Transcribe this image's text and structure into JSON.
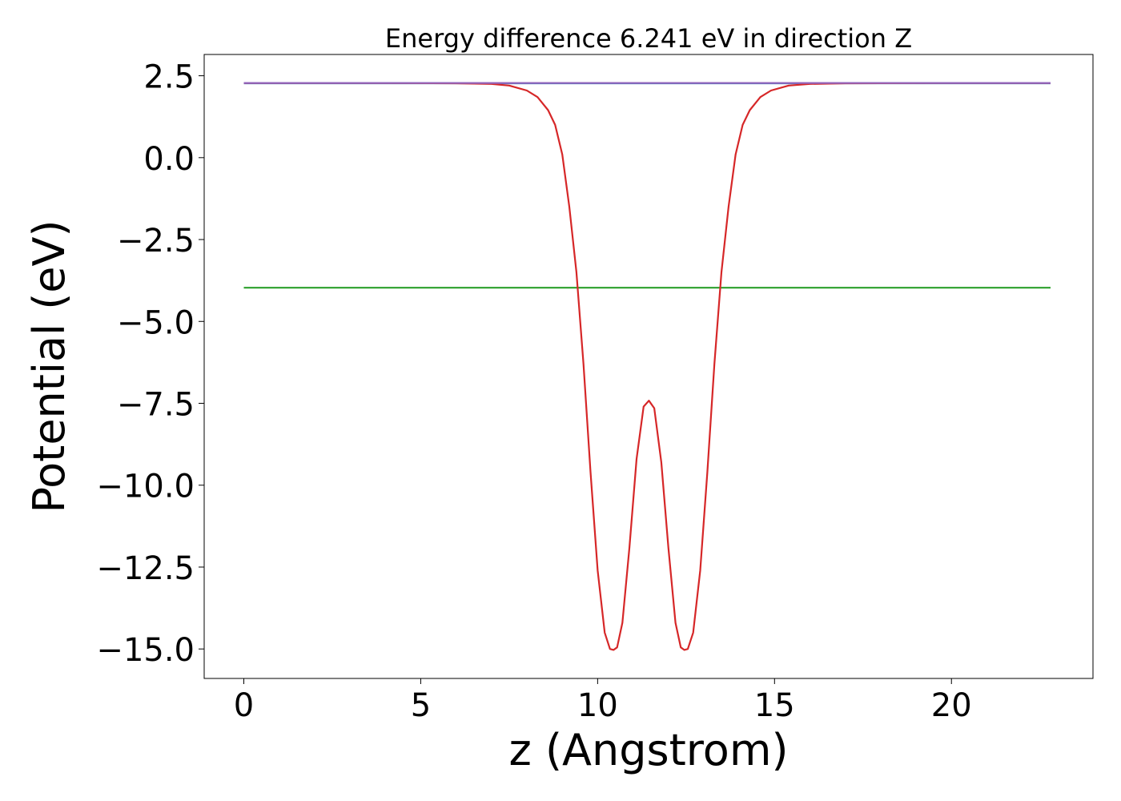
{
  "chart_data": {
    "type": "line",
    "title": "Energy difference 6.241 eV in direction Z",
    "xlabel": "z (Angstrom)",
    "ylabel": "Potential (eV)",
    "xlim": [
      -1.12,
      24.0
    ],
    "ylim": [
      -15.9,
      3.15
    ],
    "xticks": [
      0,
      5,
      10,
      15,
      20
    ],
    "xtick_labels": [
      "0",
      "5",
      "10",
      "15",
      "20"
    ],
    "yticks": [
      2.5,
      0.0,
      -2.5,
      -5.0,
      -7.5,
      -10.0,
      -12.5,
      -15.0
    ],
    "ytick_labels": [
      "2.5",
      "0.0",
      "−2.5",
      "−5.0",
      "−7.5",
      "−10.0",
      "−12.5",
      "−15.0"
    ],
    "grid": false,
    "series": [
      {
        "color": "#1f77b4",
        "x": [
          0,
          22.8
        ],
        "y": [
          2.27,
          2.27
        ]
      },
      {
        "color": "#2ca02c",
        "x": [
          0,
          22.8
        ],
        "y": [
          -3.97,
          -3.97
        ]
      },
      {
        "color": "#d62728",
        "x": [
          0,
          3,
          6,
          7.0,
          7.5,
          8.0,
          8.3,
          8.6,
          8.8,
          9.0,
          9.2,
          9.4,
          9.6,
          9.8,
          10.0,
          10.2,
          10.35,
          10.45,
          10.55,
          10.7,
          10.9,
          11.1,
          11.3,
          11.45,
          11.6,
          11.8,
          12.0,
          12.2,
          12.35,
          12.45,
          12.55,
          12.7,
          12.9,
          13.1,
          13.3,
          13.5,
          13.7,
          13.9,
          14.1,
          14.3,
          14.6,
          14.9,
          15.4,
          16.0,
          17.0,
          20.0,
          22.8
        ],
        "y": [
          2.28,
          2.28,
          2.27,
          2.25,
          2.2,
          2.05,
          1.85,
          1.45,
          1.0,
          0.1,
          -1.5,
          -3.5,
          -6.3,
          -9.6,
          -12.6,
          -14.5,
          -15.0,
          -15.03,
          -14.95,
          -14.2,
          -11.9,
          -9.2,
          -7.6,
          -7.42,
          -7.65,
          -9.3,
          -11.9,
          -14.2,
          -14.95,
          -15.03,
          -15.0,
          -14.5,
          -12.6,
          -9.6,
          -6.3,
          -3.5,
          -1.5,
          0.1,
          1.0,
          1.45,
          1.85,
          2.05,
          2.2,
          2.25,
          2.27,
          2.28,
          2.28
        ]
      },
      {
        "color": "#9467bd",
        "x": [
          0,
          7.8,
          15.0,
          22.8
        ],
        "y": [
          2.28,
          2.28,
          2.28,
          2.28
        ]
      }
    ]
  }
}
